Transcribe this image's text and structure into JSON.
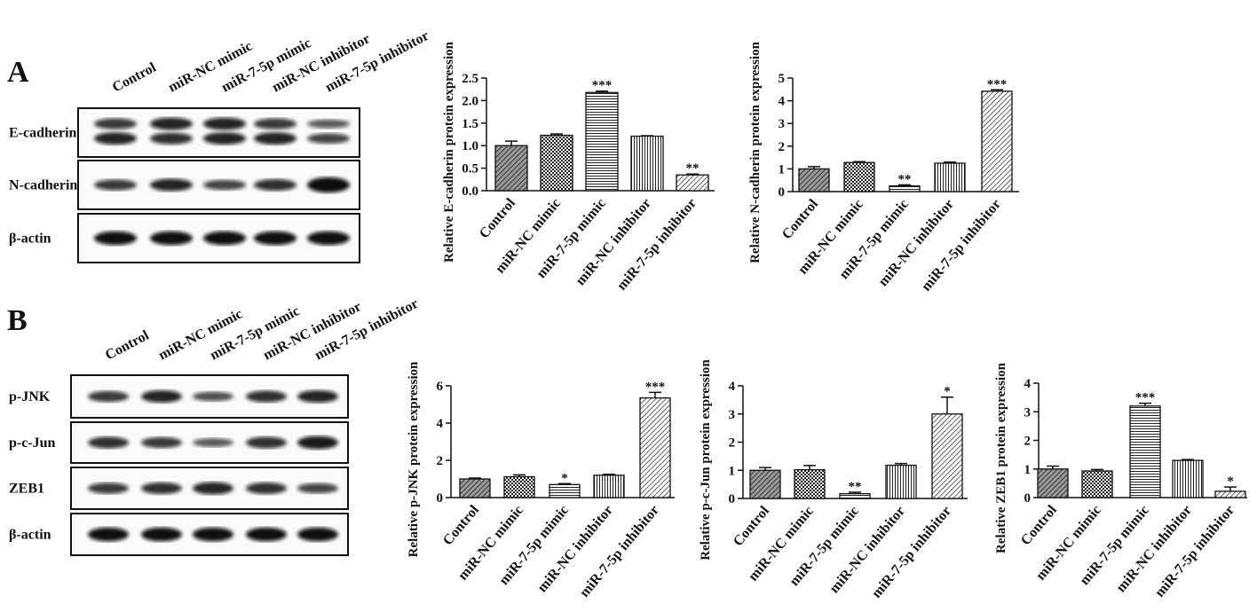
{
  "panels": {
    "a": "A",
    "b": "B"
  },
  "blots": [
    {
      "lanes": [
        "Control",
        "miR-NC mimic",
        "miR-7-5p mimic",
        "miR-NC inhibitor",
        "miR-7-5p inhibitor"
      ],
      "proteins": [
        "E-cadherin",
        "N-cadherin",
        "β-actin"
      ]
    },
    {
      "lanes": [
        "Control",
        "miR-NC mimic",
        "miR-7-5p mimic",
        "miR-NC inhibitor",
        "miR-7-5p inhibitor"
      ],
      "proteins": [
        "p-JNK",
        "p-c-Jun",
        "ZEB1",
        "β-actin"
      ]
    }
  ],
  "chart_data": [
    {
      "type": "bar",
      "y_label": "Relative E-cadherin protein expression",
      "categories": [
        "Control",
        "miR-NC mimic",
        "miR-7-5p mimic",
        "miR-NC inhibitor",
        "miR-7-5p inhibitor"
      ],
      "values": [
        1.0,
        1.23,
        2.18,
        1.21,
        0.35
      ],
      "errors": [
        0.1,
        0.03,
        0.03,
        0.01,
        0.02
      ],
      "significance": [
        null,
        null,
        "***",
        null,
        "**"
      ],
      "patterns": [
        "crosshatch",
        "checker",
        "horizontal",
        "vertical",
        "diagonal"
      ],
      "ylim": [
        0,
        2.5
      ],
      "yticks": [
        {
          "value": 0,
          "label": "0.0"
        },
        0.5,
        {
          "value": 1,
          "label": "1.0"
        },
        1.5,
        {
          "value": 2,
          "label": "2.0"
        },
        2.5
      ]
    },
    {
      "type": "bar",
      "y_label": "Relative N-cadherin protein expression",
      "categories": [
        "Control",
        "miR-NC mimic",
        "miR-7-5p mimic",
        "miR-NC inhibitor",
        "miR-7-5p inhibitor"
      ],
      "values": [
        1.0,
        1.28,
        0.25,
        1.25,
        4.42
      ],
      "errors": [
        0.1,
        0.04,
        0.05,
        0.05,
        0.06
      ],
      "significance": [
        null,
        null,
        "**",
        null,
        "***"
      ],
      "patterns": [
        "crosshatch",
        "checker",
        "horizontal",
        "vertical",
        "diagonal"
      ],
      "ylim": [
        0,
        5
      ],
      "yticks": [
        0,
        1,
        2,
        3,
        4,
        5
      ]
    },
    {
      "type": "bar",
      "y_label": "Relative p-JNK protein expression",
      "categories": [
        "Control",
        "miR-NC mimic",
        "miR-7-5p mimic",
        "miR-NC inhibitor",
        "miR-7-5p inhibitor"
      ],
      "values": [
        1.0,
        1.12,
        0.7,
        1.2,
        5.35
      ],
      "errors": [
        0.05,
        0.1,
        0.05,
        0.05,
        0.3
      ],
      "significance": [
        null,
        null,
        "*",
        null,
        "***"
      ],
      "patterns": [
        "crosshatch",
        "checker",
        "horizontal",
        "vertical",
        "diagonal"
      ],
      "ylim": [
        0,
        6
      ],
      "yticks": [
        0,
        2,
        4,
        6
      ]
    },
    {
      "type": "bar",
      "y_label": "Relative p-c-Jun protein expression",
      "categories": [
        "Control",
        "miR-NC mimic",
        "miR-7-5p mimic",
        "miR-NC inhibitor",
        "miR-7-5p inhibitor"
      ],
      "values": [
        1.0,
        1.02,
        0.17,
        1.18,
        3.0
      ],
      "errors": [
        0.1,
        0.15,
        0.05,
        0.06,
        0.6
      ],
      "significance": [
        null,
        null,
        "**",
        null,
        "*"
      ],
      "patterns": [
        "crosshatch",
        "checker",
        "horizontal",
        "vertical",
        "diagonal"
      ],
      "ylim": [
        0,
        4
      ],
      "yticks": [
        0,
        1,
        2,
        3,
        4
      ]
    },
    {
      "type": "bar",
      "y_label": "Relative ZEB1 protein expression",
      "categories": [
        "Control",
        "miR-NC mimic",
        "miR-7-5p mimic",
        "miR-NC inhibitor",
        "miR-7-5p inhibitor"
      ],
      "values": [
        1.0,
        0.93,
        3.2,
        1.3,
        0.22
      ],
      "errors": [
        0.1,
        0.05,
        0.1,
        0.03,
        0.15
      ],
      "significance": [
        null,
        null,
        "***",
        null,
        "*"
      ],
      "patterns": [
        "crosshatch",
        "checker",
        "horizontal",
        "vertical",
        "diagonal"
      ],
      "ylim": [
        0,
        4
      ],
      "yticks": [
        0,
        1,
        2,
        3,
        4
      ]
    }
  ]
}
